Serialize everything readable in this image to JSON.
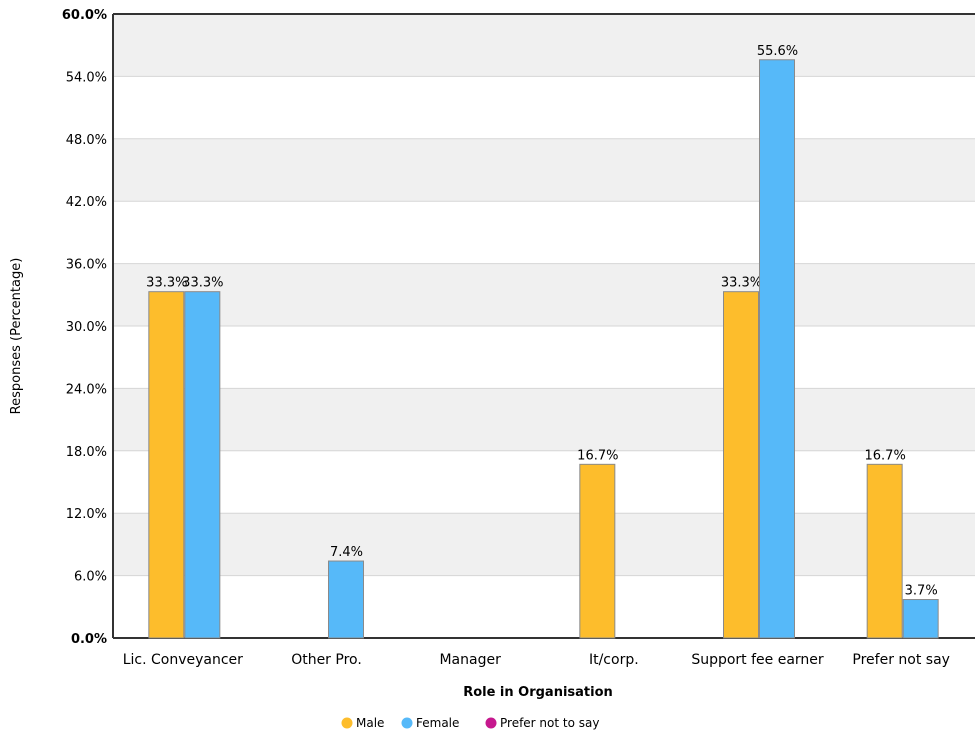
{
  "chart_data": {
    "type": "bar",
    "title": "",
    "xlabel": "Role in Organisation",
    "ylabel": "Responses (Percentage)",
    "ylim": [
      0,
      60
    ],
    "yticks": [
      "0.0%",
      "6.0%",
      "12.0%",
      "18.0%",
      "24.0%",
      "30.0%",
      "36.0%",
      "42.0%",
      "48.0%",
      "54.0%",
      "60.0%"
    ],
    "categories": [
      "Lic. Conveyancer",
      "Other Pro.",
      "Manager",
      "It/corp.",
      "Support fee earner",
      "Prefer not say"
    ],
    "series": [
      {
        "name": "Male",
        "color": "#FDBD2C",
        "values": [
          33.3,
          null,
          null,
          16.7,
          33.3,
          16.7
        ],
        "labels": [
          "33.3%",
          "",
          "",
          "16.7%",
          "33.3%",
          "16.7%"
        ]
      },
      {
        "name": "Female",
        "color": "#56B9F9",
        "values": [
          33.3,
          7.4,
          null,
          null,
          55.6,
          3.7
        ],
        "labels": [
          "33.3%",
          "7.4%",
          "",
          "",
          "55.6%",
          "3.7%"
        ]
      },
      {
        "name": "Prefer not to say",
        "color": "#C6188E",
        "values": [
          null,
          null,
          null,
          null,
          null,
          null
        ],
        "labels": [
          "",
          "",
          "",
          "",
          "",
          ""
        ]
      }
    ],
    "grid": true,
    "legend_position": "bottom"
  }
}
